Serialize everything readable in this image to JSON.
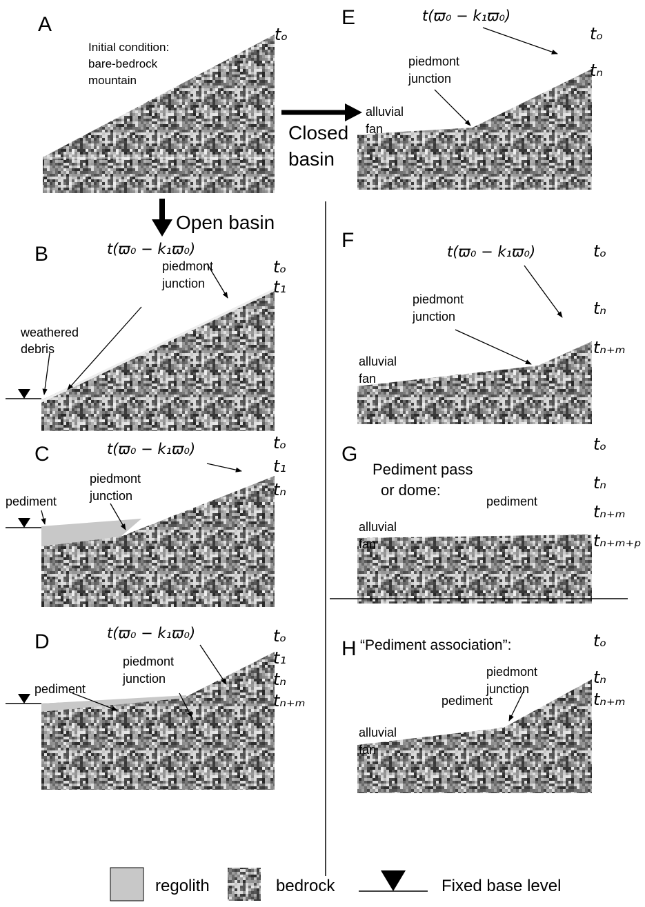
{
  "panels": {
    "A": {
      "label": "A",
      "note": [
        "Initial condition:",
        "bare-bedrock",
        "mountain"
      ],
      "times": [
        "tₒ"
      ]
    },
    "B": {
      "label": "B",
      "formula": "t(ϖ₀ − k₁ϖ₀)",
      "junction": [
        "piedmont",
        "junction"
      ],
      "debris": [
        "weathered",
        "debris"
      ],
      "times": [
        "tₒ",
        "t₁"
      ]
    },
    "C": {
      "label": "C",
      "formula": "t(ϖ₀ − k₁ϖ₀)",
      "junction": [
        "piedmont",
        "junction"
      ],
      "pediment": "pediment",
      "times": [
        "tₒ",
        "t₁",
        "tₙ"
      ]
    },
    "D": {
      "label": "D",
      "formula": "t(ϖ₀ − k₁ϖ₀)",
      "junction": [
        "piedmont",
        "junction"
      ],
      "pediment": "pediment",
      "times": [
        "tₒ",
        "t₁",
        "tₙ",
        "tₙ₊ₘ"
      ]
    },
    "E": {
      "label": "E",
      "formula": "t(ϖ₀ − k₁ϖ₀)",
      "junction": [
        "piedmont",
        "junction"
      ],
      "fan": [
        "alluvial",
        "fan"
      ],
      "times": [
        "tₒ",
        "tₙ"
      ]
    },
    "F": {
      "label": "F",
      "formula": "t(ϖ₀ − k₁ϖ₀)",
      "junction": [
        "piedmont",
        "junction"
      ],
      "fan": [
        "alluvial",
        "fan"
      ],
      "times": [
        "tₒ",
        "tₙ",
        "tₙ₊ₘ"
      ]
    },
    "G": {
      "label": "G",
      "heading": [
        "Pediment pass",
        "or dome:"
      ],
      "pediment": "pediment",
      "fan": [
        "alluvial",
        "fan"
      ],
      "times": [
        "tₒ",
        "tₙ",
        "tₙ₊ₘ",
        "tₙ₊ₘ₊ₚ"
      ]
    },
    "H": {
      "label": "H",
      "heading": [
        "“Pediment association”:"
      ],
      "junction": [
        "piedmont",
        "junction"
      ],
      "pediment": "pediment",
      "fan": [
        "alluvial",
        "fan"
      ],
      "times": [
        "tₒ",
        "tₙ",
        "tₙ₊ₘ"
      ]
    }
  },
  "transitions": {
    "closed": [
      "Closed",
      "basin"
    ],
    "open": "Open basin"
  },
  "legend": {
    "regolith": "regolith",
    "bedrock": "bedrock",
    "base_level": "Fixed base level"
  }
}
